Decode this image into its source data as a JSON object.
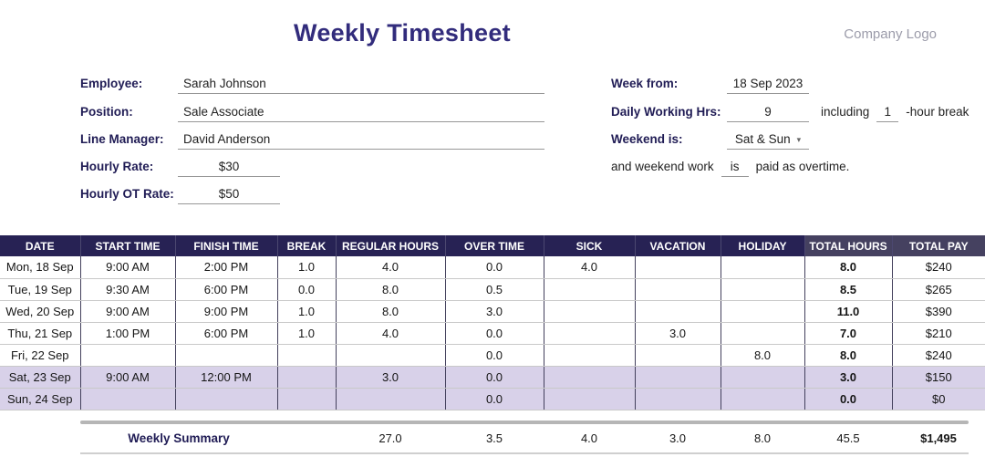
{
  "colors": {
    "title": "#322c7c",
    "label_navy": "#201c55",
    "header_bg": "#272254",
    "header_total_bg": "#454160",
    "weekend_row_bg": "#d8d1e9",
    "logo_gray": "#9c9caa"
  },
  "header": {
    "title": "Weekly Timesheet",
    "logo": "Company Logo"
  },
  "form": {
    "left": [
      {
        "label": "Employee:",
        "value": "Sarah Johnson"
      },
      {
        "label": "Position:",
        "value": "Sale Associate"
      },
      {
        "label": "Line Manager:",
        "value": "David Anderson"
      },
      {
        "label": "Hourly Rate:",
        "value": "$30"
      },
      {
        "label": "Hourly OT Rate:",
        "value": "$50"
      }
    ],
    "right": {
      "week_from_label": "Week from:",
      "week_from_value": "18 Sep 2023",
      "daily_hrs_label": "Daily Working Hrs:",
      "daily_hrs_value": "9",
      "including_text": "including",
      "break_hours_value": "1",
      "break_suffix_text": "-hour break",
      "weekend_label": "Weekend is:",
      "weekend_value": "Sat & Sun",
      "overtime_prefix_text": "and weekend work",
      "overtime_is_value": "is",
      "overtime_suffix_text": "paid as overtime."
    }
  },
  "table": {
    "columns": [
      "DATE",
      "START TIME",
      "FINISH TIME",
      "BREAK",
      "REGULAR HOURS",
      "OVER TIME",
      "SICK",
      "VACATION",
      "HOLIDAY",
      "TOTAL HOURS",
      "TOTAL PAY"
    ],
    "rows": [
      {
        "weekend": false,
        "cells": [
          "Mon, 18 Sep",
          "9:00 AM",
          "2:00 PM",
          "1.0",
          "4.0",
          "0.0",
          "4.0",
          "",
          "",
          "8.0",
          "$240"
        ]
      },
      {
        "weekend": false,
        "cells": [
          "Tue, 19 Sep",
          "9:30 AM",
          "6:00 PM",
          "0.0",
          "8.0",
          "0.5",
          "",
          "",
          "",
          "8.5",
          "$265"
        ]
      },
      {
        "weekend": false,
        "cells": [
          "Wed, 20 Sep",
          "9:00 AM",
          "9:00 PM",
          "1.0",
          "8.0",
          "3.0",
          "",
          "",
          "",
          "11.0",
          "$390"
        ]
      },
      {
        "weekend": false,
        "cells": [
          "Thu, 21 Sep",
          "1:00 PM",
          "6:00 PM",
          "1.0",
          "4.0",
          "0.0",
          "",
          "3.0",
          "",
          "7.0",
          "$210"
        ]
      },
      {
        "weekend": false,
        "cells": [
          "Fri, 22 Sep",
          "",
          "",
          "",
          "",
          "0.0",
          "",
          "",
          "8.0",
          "8.0",
          "$240"
        ]
      },
      {
        "weekend": true,
        "cells": [
          "Sat, 23 Sep",
          "9:00 AM",
          "12:00 PM",
          "",
          "3.0",
          "0.0",
          "",
          "",
          "",
          "3.0",
          "$150"
        ]
      },
      {
        "weekend": true,
        "cells": [
          "Sun, 24 Sep",
          "",
          "",
          "",
          "",
          "0.0",
          "",
          "",
          "",
          "0.0",
          "$0"
        ]
      }
    ],
    "summary": {
      "label": "Weekly Summary",
      "regular_hours": "27.0",
      "over_time": "3.5",
      "sick": "4.0",
      "vacation": "3.0",
      "holiday": "8.0",
      "total_hours": "45.5",
      "total_pay": "$1,495"
    }
  }
}
